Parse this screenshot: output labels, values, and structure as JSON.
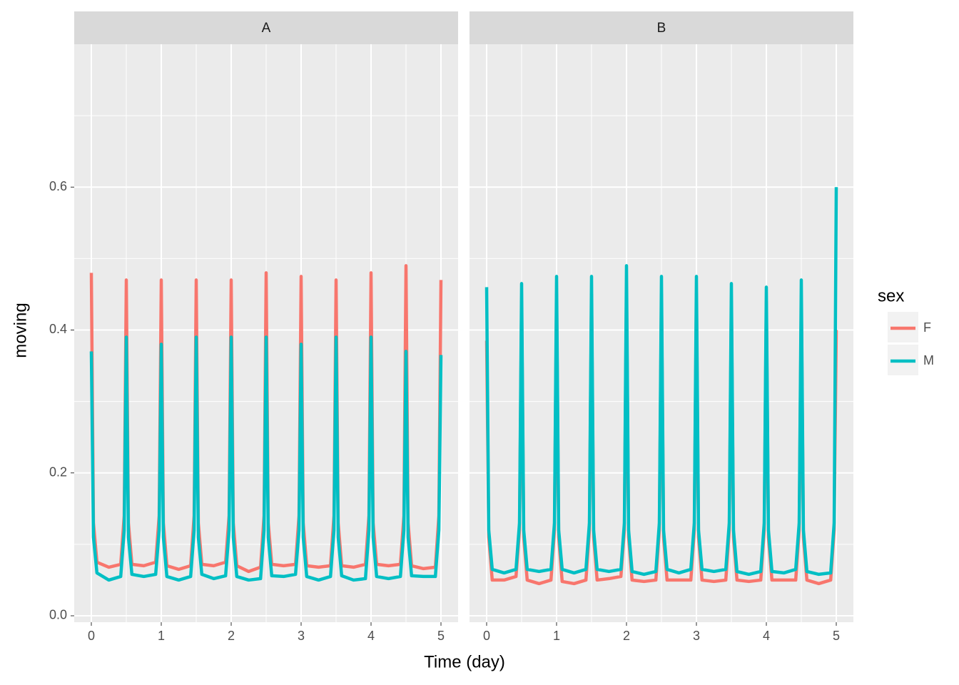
{
  "chart_data": {
    "type": "line",
    "x_label": "Time (day)",
    "y_label": "moving",
    "legend_title": "sex",
    "xlim": [
      -0.245,
      5.245
    ],
    "xticks": [
      0,
      1,
      2,
      3,
      4,
      5
    ],
    "ylim": [
      -0.009,
      0.8
    ],
    "yticks": [
      {
        "value": 0,
        "label": "0.0"
      },
      0.2,
      0.4,
      0.6
    ],
    "grid": true,
    "x": [
      0,
      0.03,
      0.08,
      0.25,
      0.42,
      0.47,
      0.5,
      0.53,
      0.58,
      0.75,
      0.92,
      0.97,
      1,
      1.03,
      1.08,
      1.25,
      1.42,
      1.47,
      1.5,
      1.53,
      1.58,
      1.75,
      1.92,
      1.97,
      2,
      2.03,
      2.08,
      2.25,
      2.42,
      2.47,
      2.5,
      2.53,
      2.58,
      2.75,
      2.92,
      2.97,
      3,
      3.03,
      3.08,
      3.25,
      3.42,
      3.47,
      3.5,
      3.53,
      3.58,
      3.75,
      3.92,
      3.97,
      4,
      4.03,
      4.08,
      4.25,
      4.42,
      4.47,
      4.5,
      4.53,
      4.58,
      4.75,
      4.92,
      4.97,
      5
    ],
    "facets": [
      {
        "title": "A",
        "series": [
          {
            "name": "F",
            "color": "#f8766d",
            "values": [
              0.48,
              0.13,
              0.075,
              0.068,
              0.072,
              0.14,
              0.47,
              0.13,
              0.072,
              0.07,
              0.075,
              0.14,
              0.47,
              0.13,
              0.07,
              0.065,
              0.07,
              0.14,
              0.47,
              0.13,
              0.072,
              0.07,
              0.075,
              0.14,
              0.47,
              0.13,
              0.07,
              0.062,
              0.068,
              0.14,
              0.48,
              0.13,
              0.072,
              0.07,
              0.072,
              0.14,
              0.475,
              0.13,
              0.07,
              0.068,
              0.07,
              0.14,
              0.47,
              0.13,
              0.07,
              0.068,
              0.072,
              0.14,
              0.48,
              0.13,
              0.072,
              0.07,
              0.072,
              0.14,
              0.49,
              0.13,
              0.07,
              0.066,
              0.068,
              0.14,
              0.47
            ]
          },
          {
            "name": "M",
            "color": "#00bfc4",
            "values": [
              0.37,
              0.11,
              0.06,
              0.05,
              0.055,
              0.12,
              0.39,
              0.11,
              0.058,
              0.055,
              0.058,
              0.12,
              0.38,
              0.11,
              0.055,
              0.05,
              0.055,
              0.12,
              0.39,
              0.11,
              0.058,
              0.052,
              0.056,
              0.12,
              0.39,
              0.11,
              0.055,
              0.05,
              0.052,
              0.12,
              0.39,
              0.11,
              0.056,
              0.055,
              0.058,
              0.12,
              0.38,
              0.11,
              0.055,
              0.05,
              0.055,
              0.12,
              0.39,
              0.11,
              0.056,
              0.05,
              0.052,
              0.12,
              0.39,
              0.11,
              0.055,
              0.052,
              0.055,
              0.12,
              0.37,
              0.11,
              0.056,
              0.055,
              0.055,
              0.12,
              0.365
            ]
          }
        ]
      },
      {
        "title": "B",
        "series": [
          {
            "name": "F",
            "color": "#f8766d",
            "values": [
              0.385,
              0.11,
              0.05,
              0.05,
              0.055,
              0.12,
              0.44,
              0.11,
              0.05,
              0.045,
              0.05,
              0.12,
              0.45,
              0.11,
              0.048,
              0.045,
              0.05,
              0.12,
              0.45,
              0.11,
              0.05,
              0.052,
              0.055,
              0.12,
              0.46,
              0.11,
              0.05,
              0.048,
              0.05,
              0.12,
              0.45,
              0.11,
              0.05,
              0.05,
              0.05,
              0.12,
              0.45,
              0.11,
              0.05,
              0.048,
              0.05,
              0.12,
              0.44,
              0.11,
              0.05,
              0.048,
              0.05,
              0.12,
              0.44,
              0.11,
              0.05,
              0.05,
              0.05,
              0.12,
              0.44,
              0.11,
              0.05,
              0.045,
              0.05,
              0.12,
              0.4
            ]
          },
          {
            "name": "M",
            "color": "#00bfc4",
            "values": [
              0.46,
              0.12,
              0.065,
              0.06,
              0.065,
              0.13,
              0.465,
              0.12,
              0.065,
              0.062,
              0.065,
              0.13,
              0.475,
              0.12,
              0.065,
              0.06,
              0.065,
              0.13,
              0.475,
              0.12,
              0.065,
              0.062,
              0.065,
              0.13,
              0.49,
              0.12,
              0.062,
              0.058,
              0.062,
              0.13,
              0.475,
              0.12,
              0.065,
              0.06,
              0.065,
              0.13,
              0.475,
              0.12,
              0.065,
              0.062,
              0.065,
              0.13,
              0.465,
              0.12,
              0.062,
              0.058,
              0.062,
              0.13,
              0.46,
              0.12,
              0.062,
              0.06,
              0.065,
              0.13,
              0.47,
              0.12,
              0.062,
              0.058,
              0.06,
              0.13,
              0.6
            ]
          }
        ]
      }
    ]
  }
}
